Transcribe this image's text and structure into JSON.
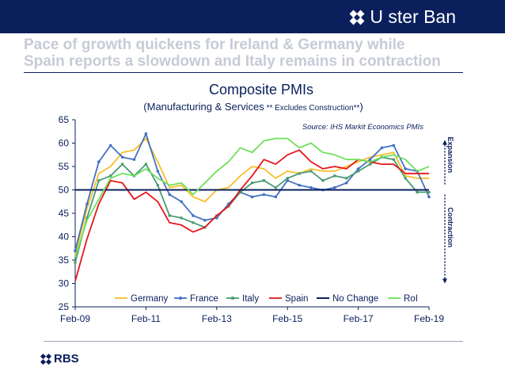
{
  "brand": {
    "name": "U ster Ban"
  },
  "headline": {
    "line1": "Pace of growth quickens for Ireland & Germany while",
    "line2": "Spain reports a slowdown and Italy remains in contraction"
  },
  "footer": {
    "logo_text": "RBS"
  },
  "colors": {
    "Germany": "#f5c02a",
    "France": "#4472c4",
    "Italy": "#4a9a73",
    "Spain": "#e8161b",
    "No Change": "#0a1f5c",
    "RoI": "#6ee05a",
    "bar": "#0a1f5c"
  },
  "chart_data": {
    "type": "line",
    "title": "Composite PMIs",
    "subtitle_main": "(Manufacturing & Services",
    "subtitle_note": " ** Excludes Construction**",
    "subtitle_close": ")",
    "source": "Source: IHS Markit Economics PMIs",
    "expansion_label": "Expansion",
    "contraction_label": "Contraction",
    "legend_position": "bottom",
    "grid": false,
    "ylim": [
      25,
      65
    ],
    "yticks": [
      25,
      30,
      35,
      40,
      45,
      50,
      55,
      60,
      65
    ],
    "xticks": [
      "Feb-09",
      "Feb-11",
      "Feb-13",
      "Feb-15",
      "Feb-17",
      "Feb-19"
    ],
    "x": [
      "Feb-09",
      "Jun-09",
      "Oct-09",
      "Feb-10",
      "Jun-10",
      "Oct-10",
      "Feb-11",
      "Jun-11",
      "Oct-11",
      "Feb-12",
      "Jun-12",
      "Oct-12",
      "Feb-13",
      "Jun-13",
      "Oct-13",
      "Feb-14",
      "Jun-14",
      "Oct-14",
      "Feb-15",
      "Jun-15",
      "Oct-15",
      "Feb-16",
      "Jun-16",
      "Oct-16",
      "Feb-17",
      "Jun-17",
      "Oct-17",
      "Feb-18",
      "Jun-18",
      "Oct-18",
      "Feb-19"
    ],
    "series": [
      {
        "name": "Germany",
        "values": [
          36.0,
          46.0,
          53.5,
          55.0,
          58.0,
          58.5,
          61.0,
          56.0,
          50.5,
          51.0,
          48.5,
          47.5,
          50.0,
          50.5,
          53.0,
          55.0,
          54.5,
          52.5,
          54.0,
          53.5,
          54.5,
          54.0,
          54.0,
          55.0,
          56.0,
          57.0,
          57.5,
          58.0,
          53.0,
          52.5,
          52.5
        ]
      },
      {
        "name": "France",
        "values": [
          37.0,
          47.0,
          56.0,
          59.5,
          57.0,
          56.5,
          62.0,
          54.0,
          49.0,
          47.5,
          44.5,
          43.5,
          44.0,
          47.0,
          49.5,
          48.5,
          49.0,
          48.5,
          52.0,
          51.0,
          50.5,
          50.0,
          50.5,
          51.5,
          54.5,
          56.5,
          59.0,
          59.5,
          54.5,
          54.0,
          48.5
        ]
      },
      {
        "name": "Italy",
        "values": [
          34.5,
          44.0,
          52.0,
          53.0,
          55.5,
          53.0,
          55.5,
          51.0,
          44.5,
          44.0,
          43.0,
          42.0,
          44.5,
          46.5,
          49.5,
          51.5,
          52.0,
          50.5,
          52.5,
          53.5,
          54.0,
          52.0,
          53.0,
          52.5,
          54.0,
          55.5,
          57.0,
          56.5,
          52.5,
          49.5,
          49.5
        ]
      },
      {
        "name": "Spain",
        "values": [
          30.5,
          39.5,
          47.0,
          52.0,
          51.5,
          48.0,
          49.5,
          47.5,
          43.0,
          42.5,
          41.0,
          42.0,
          44.5,
          46.5,
          50.0,
          53.0,
          56.5,
          55.5,
          57.5,
          58.5,
          56.0,
          54.5,
          55.0,
          54.5,
          56.5,
          56.0,
          55.5,
          55.5,
          53.5,
          53.5,
          53.5
        ]
      },
      {
        "name": "No Change",
        "values": [
          50,
          50,
          50,
          50,
          50,
          50,
          50,
          50,
          50,
          50,
          50,
          50,
          50,
          50,
          50,
          50,
          50,
          50,
          50,
          50,
          50,
          50,
          50,
          50,
          50,
          50,
          50,
          50,
          50,
          50,
          50
        ]
      },
      {
        "name": "RoI",
        "values": [
          35.5,
          43.5,
          48.0,
          52.5,
          53.5,
          53.0,
          54.5,
          52.5,
          51.0,
          51.5,
          49.0,
          51.5,
          54.0,
          56.0,
          59.0,
          58.0,
          60.5,
          61.0,
          61.0,
          59.0,
          60.0,
          58.0,
          57.5,
          56.5,
          56.5,
          56.0,
          57.0,
          57.5,
          56.5,
          54.0,
          55.0
        ]
      }
    ]
  }
}
